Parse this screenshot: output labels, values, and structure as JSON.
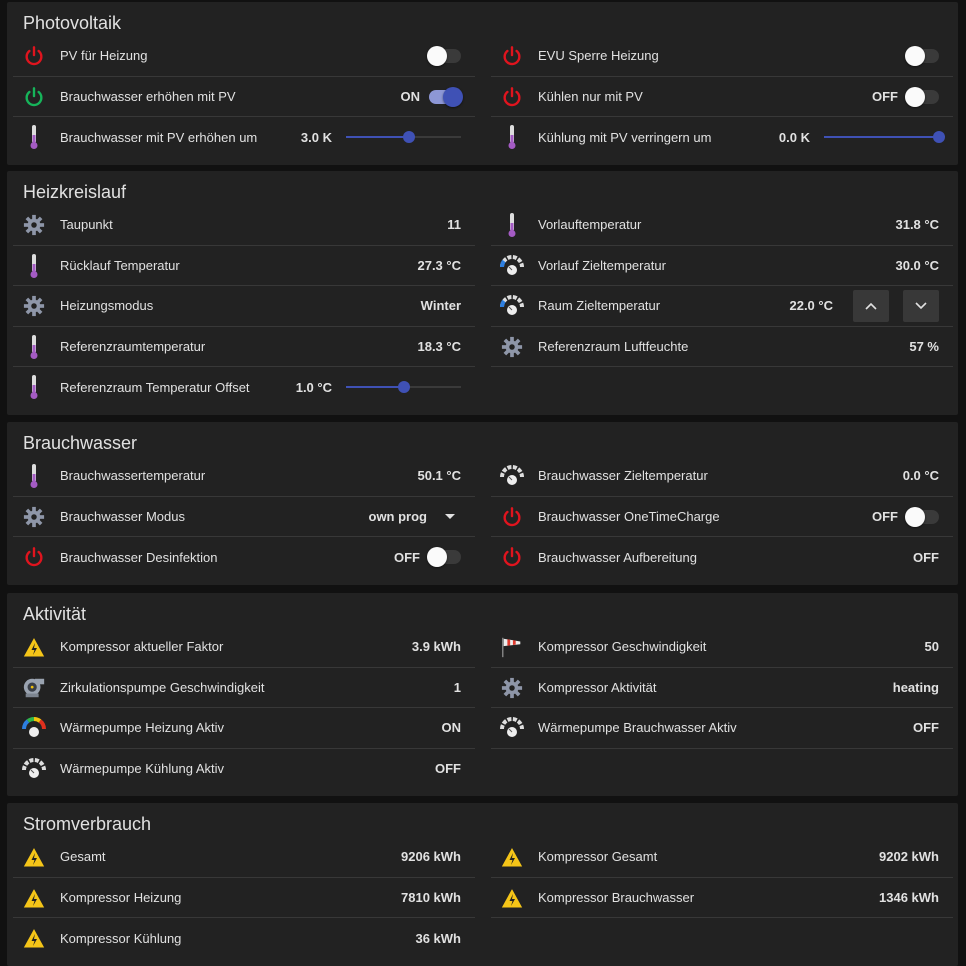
{
  "colors": {
    "accent": "#3f51b5",
    "power_off": "#e0141e",
    "power_on": "#16b45a",
    "thermometer": "#a45bc4",
    "gear": "#8e96a8",
    "warning": "#f5c518"
  },
  "sections": [
    {
      "title": "Photovoltaik",
      "left": [
        {
          "icon": "power-off-icon",
          "label": "PV für Heizung",
          "control": "toggle",
          "on": false
        },
        {
          "icon": "power-on-icon",
          "label": "Brauchwasser erhöhen mit PV",
          "control": "toggle",
          "on": true,
          "value": "ON"
        },
        {
          "icon": "thermometer-icon",
          "label": "Brauchwasser mit PV erhöhen um",
          "control": "slider",
          "value": "3.0 K",
          "level": 0.55
        }
      ],
      "right": [
        {
          "icon": "power-off-icon",
          "label": "EVU Sperre Heizung",
          "control": "toggle",
          "on": false
        },
        {
          "icon": "power-off-icon",
          "label": "Kühlen nur mit PV",
          "control": "toggle",
          "on": false,
          "value": "OFF"
        },
        {
          "icon": "thermometer-icon",
          "label": "Kühlung mit PV verringern um",
          "control": "slider",
          "value": "0.0 K",
          "level": 1.0
        }
      ]
    },
    {
      "title": "Heizkreislauf",
      "left": [
        {
          "icon": "gear-icon",
          "label": "Taupunkt",
          "value": "11"
        },
        {
          "icon": "thermometer-icon",
          "label": "Rücklauf Temperatur",
          "value": "27.3 °C"
        },
        {
          "icon": "gear-icon",
          "label": "Heizungsmodus",
          "value": "Winter"
        },
        {
          "icon": "thermometer-icon",
          "label": "Referenzraumtemperatur",
          "value": "18.3 °C"
        },
        {
          "icon": "thermometer-icon",
          "label": "Referenzraum Temperatur Offset",
          "control": "slider",
          "value": "1.0 °C",
          "level": 0.5
        }
      ],
      "right": [
        {
          "icon": "thermometer-icon",
          "label": "Vorlauftemperatur",
          "value": "31.8 °C"
        },
        {
          "icon": "gauge-cold-icon",
          "label": "Vorlauf Zieltemperatur",
          "value": "30.0 °C"
        },
        {
          "icon": "gauge-cold-icon",
          "label": "Raum Zieltemperatur",
          "control": "stepper",
          "value": "22.0 °C"
        },
        {
          "icon": "gear-icon",
          "label": "Referenzraum Luftfeuchte",
          "value": "57 %"
        }
      ]
    },
    {
      "title": "Brauchwasser",
      "left": [
        {
          "icon": "thermometer-icon",
          "label": "Brauchwassertemperatur",
          "value": "50.1 °C"
        },
        {
          "icon": "gear-icon",
          "label": "Brauchwasser Modus",
          "control": "dropdown",
          "value": "own prog"
        },
        {
          "icon": "power-off-icon",
          "label": "Brauchwasser Desinfektion",
          "control": "toggle",
          "on": false,
          "value": "OFF"
        }
      ],
      "right": [
        {
          "icon": "gauge-icon",
          "label": "Brauchwasser Zieltemperatur",
          "value": "0.0 °C"
        },
        {
          "icon": "power-off-icon",
          "label": "Brauchwasser OneTimeCharge",
          "control": "toggle",
          "on": false,
          "value": "OFF"
        },
        {
          "icon": "power-off-icon",
          "label": "Brauchwasser Aufbereitung",
          "value": "OFF"
        }
      ]
    },
    {
      "title": "Aktivität",
      "left": [
        {
          "icon": "warning-icon",
          "label": "Kompressor aktueller Faktor",
          "value": "3.9 kWh"
        },
        {
          "icon": "pump-icon",
          "label": "Zirkulationspumpe Geschwindigkeit",
          "value": "1"
        },
        {
          "icon": "gauge-color-icon",
          "label": "Wärmepumpe Heizung Aktiv",
          "value": "ON"
        },
        {
          "icon": "gauge-icon",
          "label": "Wärmepumpe Kühlung Aktiv",
          "value": "OFF"
        }
      ],
      "right": [
        {
          "icon": "windsock-icon",
          "label": "Kompressor Geschwindigkeit",
          "value": "50"
        },
        {
          "icon": "gear-icon",
          "label": "Kompressor Aktivität",
          "value": "heating"
        },
        {
          "icon": "gauge-icon",
          "label": "Wärmepumpe Brauchwasser Aktiv",
          "value": "OFF"
        }
      ]
    },
    {
      "title": "Stromverbrauch",
      "left": [
        {
          "icon": "warning-icon",
          "label": "Gesamt",
          "value": "9206 kWh"
        },
        {
          "icon": "warning-icon",
          "label": "Kompressor Heizung",
          "value": "7810 kWh"
        },
        {
          "icon": "warning-icon",
          "label": "Kompressor Kühlung",
          "value": "36 kWh"
        }
      ],
      "right": [
        {
          "icon": "warning-icon",
          "label": "Kompressor Gesamt",
          "value": "9202 kWh"
        },
        {
          "icon": "warning-icon",
          "label": "Kompressor Brauchwasser",
          "value": "1346 kWh"
        }
      ]
    }
  ]
}
